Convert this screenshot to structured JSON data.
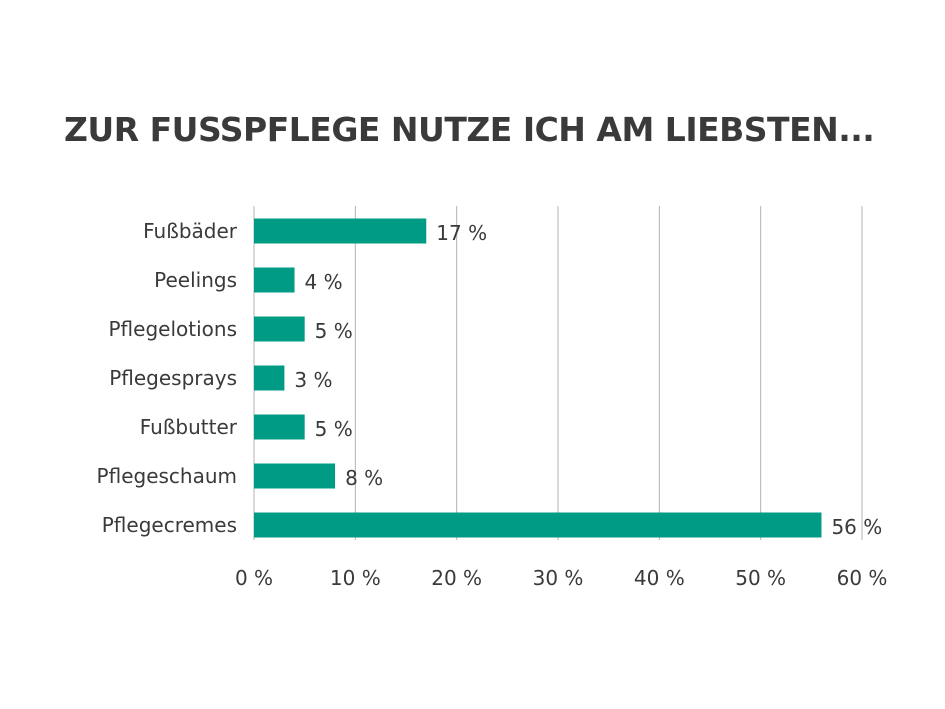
{
  "chart_data": {
    "type": "bar",
    "orientation": "horizontal",
    "title": "ZUR FUSSPFLEGE NUTZE ICH AM LIEBSTEN...",
    "xlabel": "",
    "ylabel": "",
    "categories": [
      "Fußbäder",
      "Peelings",
      "Pflegelotions",
      "Pflegesprays",
      "Fußbutter",
      "Pflegeschaum",
      "Pflegecremes"
    ],
    "values": [
      17,
      4,
      5,
      3,
      5,
      8,
      56
    ],
    "data_labels": [
      "17 %",
      "4 %",
      "5 %",
      "3 %",
      "5 %",
      "8 %",
      "56 %"
    ],
    "xlim": [
      0,
      60
    ],
    "x_ticks": [
      0,
      10,
      20,
      30,
      40,
      50,
      60
    ],
    "x_tick_labels": [
      "0 %",
      "10 %",
      "20 %",
      "30 %",
      "40 %",
      "50 %",
      "60 %"
    ],
    "grid": true,
    "bar_color": "#009b84",
    "grid_color": "#b3b3b3",
    "text_color": "#3a3a3a"
  }
}
